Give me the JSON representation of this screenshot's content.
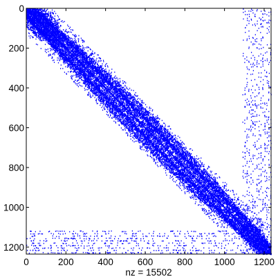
{
  "chart_data": {
    "type": "spy",
    "xlabel": "nz = 15502",
    "nz": 15502,
    "xlim": [
      0,
      1235
    ],
    "ylim": [
      0,
      1235
    ],
    "y_reversed": true,
    "x_ticks": [
      0,
      200,
      400,
      600,
      800,
      1000,
      1200
    ],
    "y_ticks": [
      0,
      200,
      400,
      600,
      800,
      1000,
      1200
    ],
    "x_tick_labels": [
      "0",
      "200",
      "400",
      "600",
      "800",
      "1000",
      "1200"
    ],
    "y_tick_labels": [
      "0",
      "200",
      "400",
      "600",
      "800",
      "1000",
      "1200"
    ],
    "marker_color": "#0000ff",
    "axes_color": "#000000",
    "background": "#ffffff",
    "grid": false,
    "structure": {
      "bands": [
        {
          "name": "main diagonal",
          "x0": 0,
          "y0": 0,
          "x1": 1235,
          "y1": 1235
        },
        {
          "name": "upper off-diagonal",
          "x0": 50,
          "y0": 0,
          "x1": 1090,
          "y1": 1050
        },
        {
          "name": "lower off-diagonal",
          "x0": 0,
          "y0": 40,
          "x1": 1060,
          "y1": 1110
        }
      ],
      "lower_block": {
        "rows": [
          1110,
          1230
        ],
        "cols": [
          0,
          1210
        ]
      },
      "right_block": {
        "cols": [
          1090,
          1235
        ],
        "rows": [
          0,
          1235
        ]
      }
    }
  }
}
